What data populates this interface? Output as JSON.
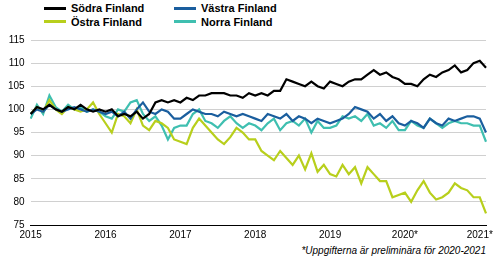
{
  "chart_data": {
    "type": "line",
    "categories": [
      "2015",
      null,
      null,
      null,
      null,
      null,
      null,
      null,
      null,
      null,
      null,
      null,
      "2016",
      null,
      null,
      null,
      null,
      null,
      null,
      null,
      null,
      null,
      null,
      null,
      "2017",
      null,
      null,
      null,
      null,
      null,
      null,
      null,
      null,
      null,
      null,
      null,
      "2018",
      null,
      null,
      null,
      null,
      null,
      null,
      null,
      null,
      null,
      null,
      null,
      "2019",
      null,
      null,
      null,
      null,
      null,
      null,
      null,
      null,
      null,
      null,
      null,
      "2020*",
      null,
      null,
      null,
      null,
      null,
      null,
      null,
      null,
      null,
      null,
      null,
      "2021*",
      null
    ],
    "series": [
      {
        "name": "Södra Finland",
        "color": "#000000",
        "values": [
          99,
          100.5,
          100,
          101,
          100,
          99.5,
          100.5,
          100,
          101,
          100,
          99.5,
          100,
          99.5,
          100,
          98.5,
          99,
          98.5,
          99.5,
          98,
          99,
          101.5,
          102,
          101.5,
          102,
          101.5,
          102.5,
          102,
          103,
          103,
          103.5,
          103.5,
          103.5,
          103,
          103,
          102.5,
          103.5,
          103,
          103.5,
          103,
          104,
          104,
          106.5,
          106,
          105.5,
          105,
          106,
          105,
          104.5,
          106,
          105.5,
          105,
          106,
          106.5,
          106.5,
          107.5,
          108.5,
          107.5,
          108,
          107,
          106.5,
          105.5,
          105.5,
          105,
          106.5,
          107.5,
          107,
          108,
          108.5,
          109.5,
          108,
          108.5,
          110,
          110.5,
          109
        ]
      },
      {
        "name": "Västra Finland",
        "color": "#1a5e9e",
        "values": [
          99,
          100,
          99.5,
          101,
          100,
          99.5,
          100,
          100.5,
          100,
          99.5,
          100,
          99.5,
          99,
          99.5,
          98.5,
          99.5,
          98,
          100,
          101.5,
          99.5,
          99,
          100,
          99.5,
          98,
          98,
          99,
          100,
          99.5,
          99,
          99,
          98.5,
          99.5,
          99,
          98.5,
          99,
          98.5,
          98,
          97.5,
          99,
          98.5,
          98,
          99,
          97.5,
          98.5,
          98,
          97,
          98,
          97.5,
          97,
          97.5,
          98,
          99,
          100.5,
          100,
          99.5,
          98,
          99,
          97.5,
          98.5,
          97,
          96.5,
          97.5,
          97,
          96,
          98,
          97,
          96.5,
          98,
          97.5,
          98,
          98.5,
          98.5,
          98,
          95
        ]
      },
      {
        "name": "Östra Finland",
        "color": "#b8cf1c",
        "values": [
          99,
          100.5,
          99.5,
          102,
          100,
          99,
          100.5,
          100,
          99.5,
          100,
          101.5,
          99,
          97,
          95,
          99,
          98.5,
          97,
          100,
          96.5,
          95.5,
          97.5,
          97,
          96,
          93.5,
          93,
          92.5,
          96,
          98,
          96.5,
          95,
          93.5,
          92.5,
          94,
          96,
          95,
          93.5,
          93.5,
          91,
          90,
          89,
          91,
          89.5,
          88,
          90,
          87,
          90.5,
          86.5,
          88,
          86,
          85.5,
          88,
          86,
          87.5,
          84,
          87.5,
          86,
          84.5,
          84.5,
          81,
          81.5,
          82,
          80,
          82.5,
          84.5,
          82,
          80.5,
          81,
          82,
          84,
          83,
          82.5,
          81,
          81,
          77.5
        ]
      },
      {
        "name": "Norra Finland",
        "color": "#3fbfb0",
        "values": [
          98,
          101,
          99,
          103,
          100.5,
          99.5,
          101,
          100,
          100.5,
          99.5,
          100,
          99.5,
          98.5,
          98,
          100,
          99.5,
          101.5,
          102,
          99,
          97.5,
          98.5,
          96.5,
          93.5,
          96,
          96.5,
          96.5,
          99,
          100,
          97.5,
          97,
          96,
          97.5,
          98.5,
          97,
          96,
          97,
          96.5,
          95.5,
          97,
          98,
          95.5,
          97,
          97.5,
          96.5,
          98,
          95,
          97.5,
          96,
          96,
          96.5,
          98.5,
          98,
          98.5,
          97.5,
          99,
          96.5,
          97,
          96,
          97.5,
          95.5,
          95.5,
          97.5,
          96.5,
          96,
          98,
          97,
          96,
          97,
          97.5,
          97,
          97,
          96.5,
          96.5,
          93
        ]
      }
    ],
    "ylim": [
      75,
      115
    ],
    "yticks": [
      75,
      80,
      85,
      90,
      95,
      100,
      105,
      110,
      115
    ],
    "grid": true,
    "legend": "top",
    "annotations": [
      "*Uppgifterna är preliminära för 2020-2021"
    ]
  }
}
